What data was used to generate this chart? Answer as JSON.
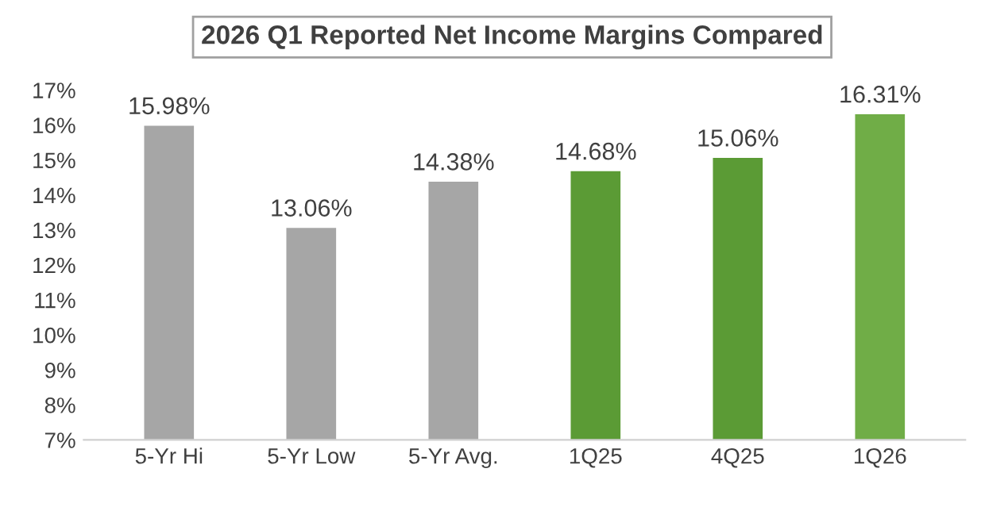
{
  "chart_data": {
    "type": "bar",
    "title": "2026 Q1 Reported Net Income Margins Compared",
    "categories": [
      "5-Yr Hi",
      "5-Yr Low",
      "5-Yr Avg.",
      "1Q25",
      "4Q25",
      "1Q26"
    ],
    "values": [
      15.98,
      13.06,
      14.38,
      14.68,
      15.06,
      16.31
    ],
    "colors": [
      "#a6a6a6",
      "#a6a6a6",
      "#a6a6a6",
      "#5b9b35",
      "#5b9b35",
      "#70ad47"
    ],
    "value_labels": [
      "15.98%",
      "13.06%",
      "14.38%",
      "14.68%",
      "15.06%",
      "16.31%"
    ],
    "ylim": [
      7,
      17
    ],
    "yticks": [
      {
        "value": 7,
        "label": "7%"
      },
      {
        "value": 8,
        "label": "8%"
      },
      {
        "value": 9,
        "label": "9%"
      },
      {
        "value": 10,
        "label": "10%"
      },
      {
        "value": 11,
        "label": "11%"
      },
      {
        "value": 12,
        "label": "12%"
      },
      {
        "value": 13,
        "label": "13%"
      },
      {
        "value": 14,
        "label": "14%"
      },
      {
        "value": 15,
        "label": "15%"
      },
      {
        "value": 16,
        "label": "16%"
      },
      {
        "value": 17,
        "label": "17%"
      }
    ],
    "grid": false,
    "legend": false
  }
}
